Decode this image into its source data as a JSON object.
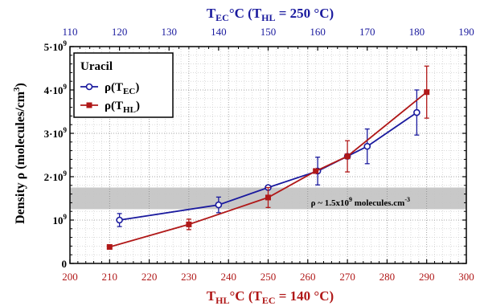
{
  "chart_data": {
    "type": "line",
    "xlabel_bottom": "THL°C (TEC = 140 °C)",
    "xlabel_top": "TEC°C (THL = 250 °C)",
    "ylabel": "Density ρ (molecules/cm3)",
    "xlim_bottom": [
      200,
      300
    ],
    "xlim_top": [
      110,
      190
    ],
    "ylim": [
      0,
      5000000000.0
    ],
    "grid": true,
    "legend_placement": "top-left",
    "legend_title": "Uracil",
    "x_bottom_ticks": [
      "200",
      "210",
      "220",
      "230",
      "240",
      "250",
      "260",
      "270",
      "280",
      "290",
      "300"
    ],
    "x_top_ticks": [
      "110",
      "120",
      "130",
      "140",
      "150",
      "160",
      "170",
      "180",
      "190"
    ],
    "y_ticks": [
      {
        "value": 0,
        "base": "0",
        "exp": ""
      },
      {
        "value": 1000000000.0,
        "base": "10",
        "exp": "9"
      },
      {
        "value": 2000000000.0,
        "base": "2·10",
        "exp": "9"
      },
      {
        "value": 3000000000.0,
        "base": "3·10",
        "exp": "9"
      },
      {
        "value": 4000000000.0,
        "base": "4·10",
        "exp": "9"
      },
      {
        "value": 5000000000.0,
        "base": "5·10",
        "exp": "9"
      }
    ],
    "band": {
      "y_low": 1250000000.0,
      "y_high": 1750000000.0,
      "label": "ρ ~ 1.5x10",
      "label_exp": "9",
      "label_tail": " molecules.cm",
      "label_exp2": "-3"
    },
    "series": [
      {
        "name": "ρ(TEC)",
        "color": "#1a1a9e",
        "marker": "open-circle",
        "axis": "top",
        "points": [
          {
            "x": 120,
            "y": 1000000000.0,
            "err": 150000000.0
          },
          {
            "x": 140,
            "y": 1350000000.0,
            "err": 180000000.0
          },
          {
            "x": 150,
            "y": 1750000000.0,
            "err": 0
          },
          {
            "x": 160,
            "y": 2130000000.0,
            "err": 320000000.0
          },
          {
            "x": 166,
            "y": 2470000000.0,
            "err": 0
          },
          {
            "x": 170,
            "y": 2700000000.0,
            "err": 400000000.0
          },
          {
            "x": 180,
            "y": 3480000000.0,
            "err": 520000000.0
          }
        ]
      },
      {
        "name": "ρ(THL)",
        "color": "#b01818",
        "marker": "filled-square",
        "axis": "bottom",
        "points": [
          {
            "x": 210,
            "y": 380000000.0,
            "err": 0
          },
          {
            "x": 230,
            "y": 900000000.0,
            "err": 120000000.0
          },
          {
            "x": 250,
            "y": 1520000000.0,
            "err": 230000000.0
          },
          {
            "x": 262,
            "y": 2130000000.0,
            "err": 0
          },
          {
            "x": 270,
            "y": 2470000000.0,
            "err": 360000000.0
          },
          {
            "x": 290,
            "y": 3950000000.0,
            "err": 600000000.0
          }
        ]
      }
    ]
  }
}
